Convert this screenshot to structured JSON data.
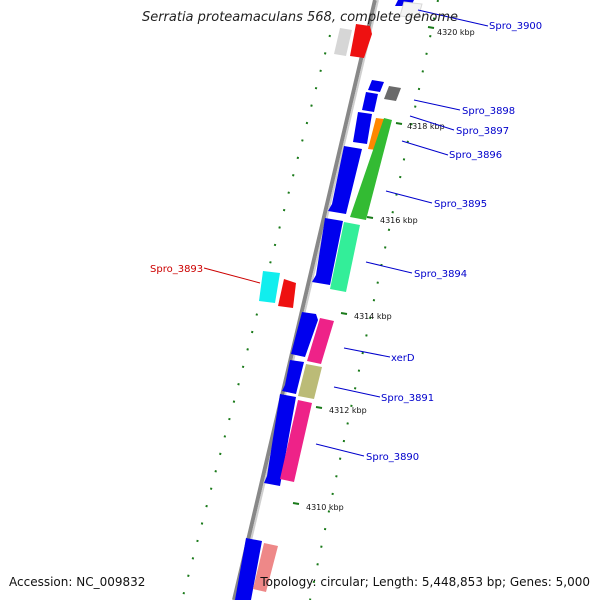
{
  "title": "Serratia proteamaculans 568, complete genome",
  "footer": {
    "accession": "Accession: NC_009832",
    "summary": "Topology: circular; Length: 5,448,853 bp; Genes: 5,000"
  },
  "ticks": [
    "4320 kbp",
    "4318 kbp",
    "4316 kbp",
    "4314 kbp",
    "4312 kbp",
    "4310 kbp"
  ],
  "genes": [
    "Spro_3900",
    "Spro_3898",
    "Spro_3897",
    "Spro_3896",
    "Spro_3895",
    "Spro_3894",
    "Spro_3893",
    "xerD",
    "Spro_3891",
    "Spro_3890"
  ],
  "colors": {
    "backbone": "#8a8a8a",
    "forward_strand": "#0000ee",
    "label_blue": "#0000cc",
    "label_red": "#cc0000",
    "tick_green": "#1a7a1a"
  }
}
